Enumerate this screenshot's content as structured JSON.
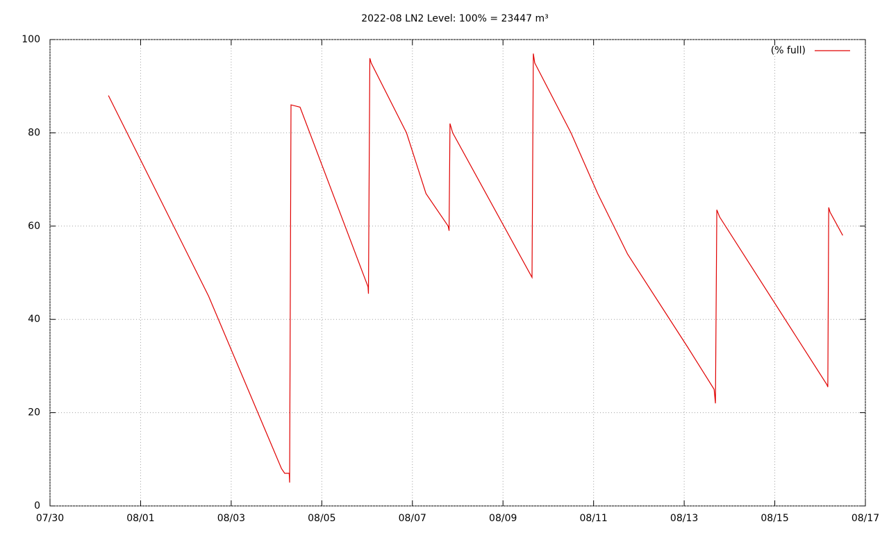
{
  "chart_data": {
    "type": "line",
    "title": "2022-08 LN2 Level: 100% = 23447 m³",
    "x": [
      1.29,
      3.5,
      5.11,
      5.18,
      5.28,
      5.29,
      5.32,
      5.52,
      7.02,
      7.03,
      7.06,
      7.09,
      7.87,
      8.3,
      8.79,
      8.81,
      8.83,
      8.89,
      10.64,
      10.67,
      10.7,
      11.5,
      12.09,
      12.75,
      14.08,
      14.66,
      14.69,
      14.72,
      14.78,
      17.15,
      17.17,
      17.19,
      17.22,
      17.5
    ],
    "series": [
      {
        "name": "(% full)",
        "color": "#e00000",
        "values": [
          88,
          45,
          8,
          7,
          7,
          5,
          86,
          85.5,
          47,
          45.5,
          96,
          95,
          80,
          67,
          60,
          59,
          82,
          80,
          49,
          97,
          95,
          80,
          67,
          54,
          34,
          25,
          22,
          63.5,
          62,
          26,
          25.5,
          64,
          63,
          58
        ]
      }
    ],
    "xlim": [
      0,
      18
    ],
    "xticks": [
      {
        "value": 0,
        "label": "07/30"
      },
      {
        "value": 2,
        "label": "08/01"
      },
      {
        "value": 4,
        "label": "08/03"
      },
      {
        "value": 6,
        "label": "08/05"
      },
      {
        "value": 8,
        "label": "08/07"
      },
      {
        "value": 10,
        "label": "08/09"
      },
      {
        "value": 12,
        "label": "08/11"
      },
      {
        "value": 14,
        "label": "08/13"
      },
      {
        "value": 16,
        "label": "08/15"
      },
      {
        "value": 18,
        "label": "08/17"
      }
    ],
    "ylim": [
      0,
      100
    ],
    "yticks": [
      0,
      20,
      40,
      60,
      80,
      100
    ],
    "grid": true,
    "legend": "top-right"
  }
}
